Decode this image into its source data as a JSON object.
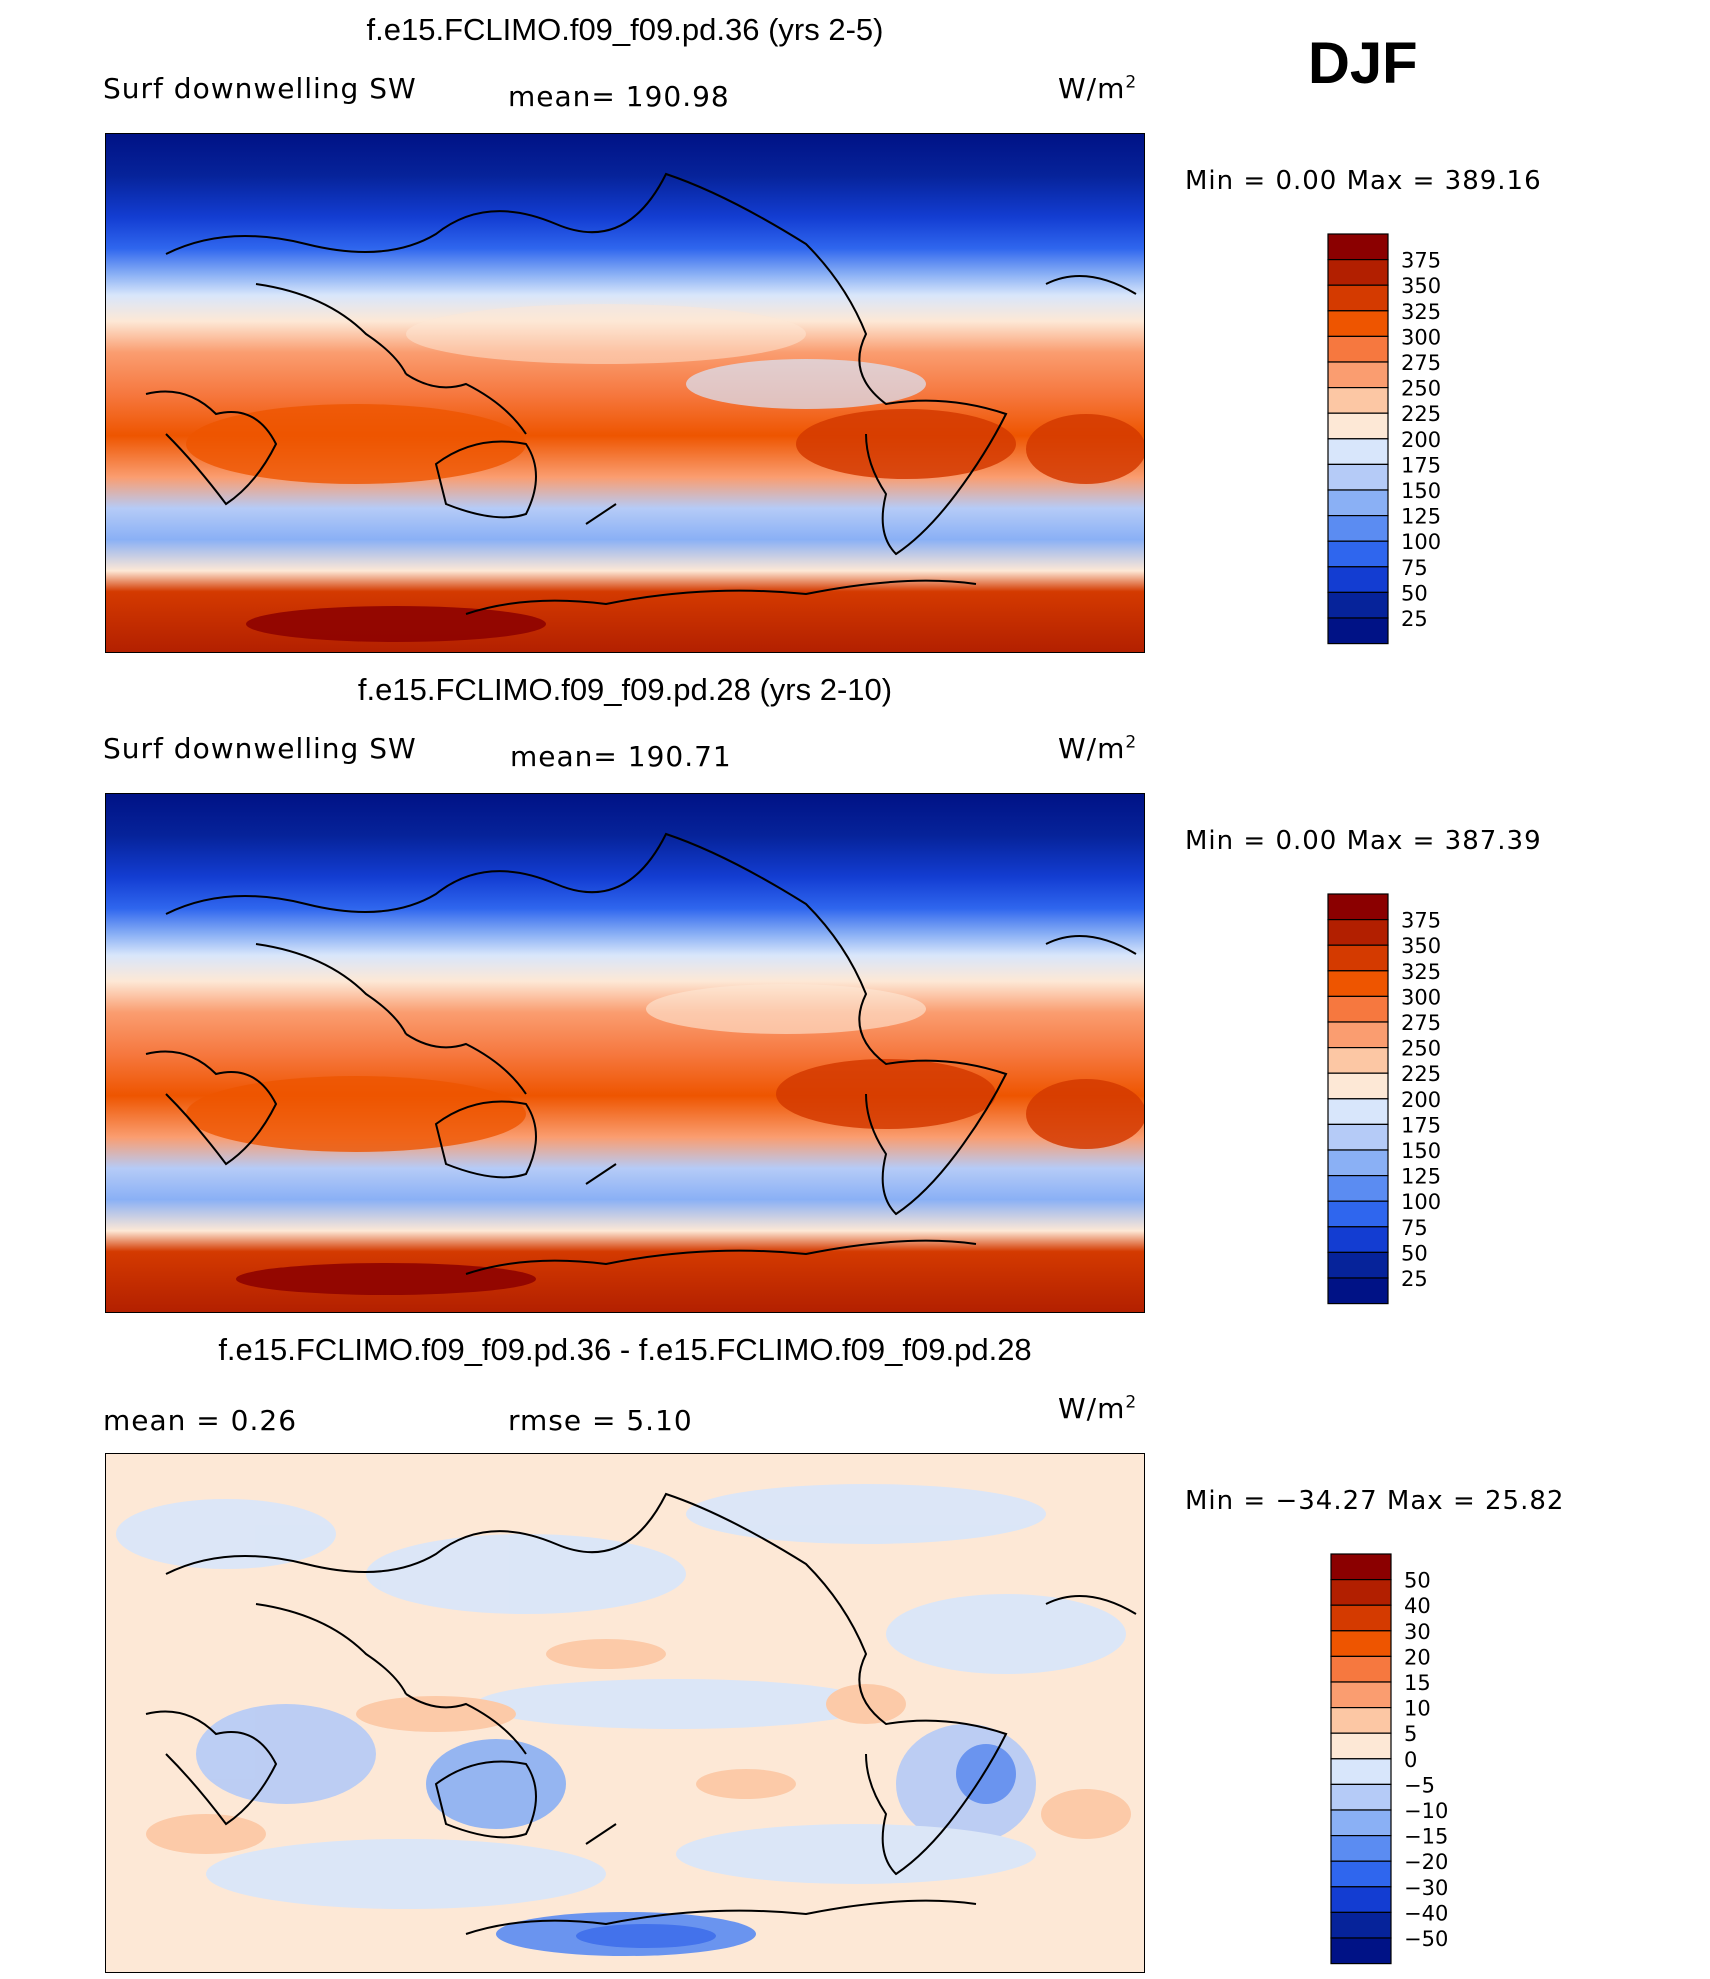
{
  "season_label": "DJF",
  "chart_data": [
    {
      "type": "heatmap",
      "title": "f.e15.FCLIMO.f09_f09.pd.36 (yrs 2-5)",
      "variable": "Surf  downwelling SW",
      "stat_left": "",
      "stat_mid": "mean=  190.98",
      "units_base": "W/m",
      "units_exp": "2",
      "minmax": "Min  =      0.00  Max  =  389.16",
      "min": 0.0,
      "max": 389.16,
      "mean": 190.98,
      "levels": [
        "375",
        "350",
        "325",
        "300",
        "275",
        "250",
        "225",
        "200",
        "175",
        "150",
        "125",
        "100",
        "75",
        "50",
        "25"
      ],
      "colors": [
        "#8b0000",
        "#b21f00",
        "#d43a00",
        "#ee5500",
        "#f6783f",
        "#fa9d70",
        "#fcc7a4",
        "#fde8d6",
        "#d8e6fb",
        "#b5cbf7",
        "#8ab0f5",
        "#5b8cf2",
        "#2f66ee",
        "#133dd2",
        "#06239a",
        "#001286"
      ]
    },
    {
      "type": "heatmap",
      "title": "f.e15.FCLIMO.f09_f09.pd.28 (yrs 2-10)",
      "variable": "Surf  downwelling SW",
      "stat_left": "",
      "stat_mid": "mean=  190.71",
      "units_base": "W/m",
      "units_exp": "2",
      "minmax": "Min  =      0.00  Max  =  387.39",
      "min": 0.0,
      "max": 387.39,
      "mean": 190.71,
      "levels": [
        "375",
        "350",
        "325",
        "300",
        "275",
        "250",
        "225",
        "200",
        "175",
        "150",
        "125",
        "100",
        "75",
        "50",
        "25"
      ],
      "colors": [
        "#8b0000",
        "#b21f00",
        "#d43a00",
        "#ee5500",
        "#f6783f",
        "#fa9d70",
        "#fcc7a4",
        "#fde8d6",
        "#d8e6fb",
        "#b5cbf7",
        "#8ab0f5",
        "#5b8cf2",
        "#2f66ee",
        "#133dd2",
        "#06239a",
        "#001286"
      ]
    },
    {
      "type": "heatmap",
      "title": "f.e15.FCLIMO.f09_f09.pd.36 - f.e15.FCLIMO.f09_f09.pd.28",
      "variable": "",
      "stat_left": "mean  =     0.26",
      "stat_mid": "rmse  =     5.10",
      "units_base": "W/m",
      "units_exp": "2",
      "minmax": "Min  = −34.27  Max  =    25.82",
      "min": -34.27,
      "max": 25.82,
      "mean": 0.26,
      "rmse": 5.1,
      "levels": [
        "50",
        "40",
        "30",
        "20",
        "15",
        "10",
        "5",
        "0",
        "−5",
        "−10",
        "−15",
        "−20",
        "−30",
        "−40",
        "−50"
      ],
      "colors": [
        "#8b0000",
        "#b21f00",
        "#d43a00",
        "#ee5500",
        "#f6783f",
        "#fa9d70",
        "#fcc7a4",
        "#fde8d6",
        "#d8e6fb",
        "#b5cbf7",
        "#8ab0f5",
        "#5b8cf2",
        "#2f66ee",
        "#133dd2",
        "#06239a",
        "#001286"
      ]
    }
  ]
}
